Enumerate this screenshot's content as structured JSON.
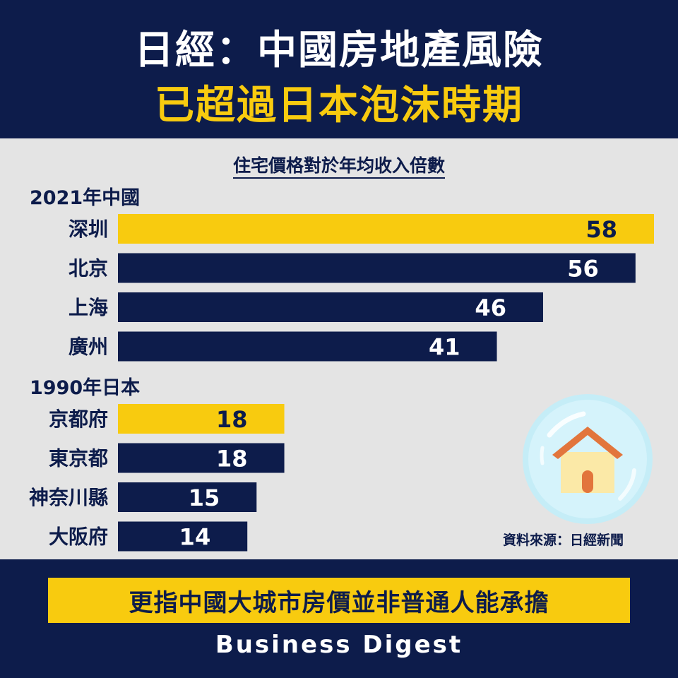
{
  "header": {
    "title_line1": "日經：中國房地產風險",
    "title_line2": "已超過日本泡沫時期"
  },
  "colors": {
    "navy": "#0d1c4b",
    "highlight": "#f8cb0f",
    "panel": "#e4e4e4",
    "bubble": "#c5edf7"
  },
  "chart_data": {
    "type": "bar",
    "orientation": "horizontal",
    "title": "住宅價格對於年均收入倍數",
    "groups": [
      {
        "name": "2021年中國",
        "categories": [
          "深圳",
          "北京",
          "上海",
          "廣州"
        ],
        "values": [
          58,
          56,
          46,
          41
        ],
        "highlight_index": 0
      },
      {
        "name": "1990年日本",
        "categories": [
          "京都府",
          "東京都",
          "神奈川縣",
          "大阪府"
        ],
        "values": [
          18,
          18,
          15,
          14
        ],
        "highlight_index": 0
      }
    ],
    "xlim": [
      0,
      58
    ],
    "grid": false,
    "data_labels": "inside-end"
  },
  "decoration": {
    "icon": "house-in-bubble-icon"
  },
  "source": "資料來源：日經新聞",
  "footer": {
    "banner": "更指中國大城市房價並非普通人能承擔",
    "brand": "Business Digest"
  }
}
